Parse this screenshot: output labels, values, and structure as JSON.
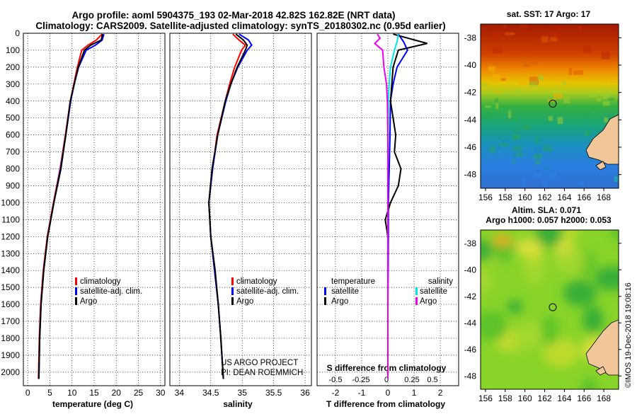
{
  "titles": {
    "line1": "Argo profile: aoml 5904375_193 02-Mar-2018 42.82S 162.82E (NRT data)",
    "line2": "Climatology: CARS2009. Satellite-adjusted climatology: synTS_20180302.nc (0.95d earlier)"
  },
  "colors": {
    "climatology": "#ff0000",
    "satellite": "#0000ff",
    "argo": "#000000",
    "sat_salinity": "#00e6e6",
    "argo_salinity": "#ee00ee"
  },
  "depth_axis": {
    "ticks": [
      0,
      100,
      200,
      300,
      400,
      500,
      600,
      700,
      800,
      900,
      1000,
      1100,
      1200,
      1300,
      1400,
      1500,
      1600,
      1700,
      1800,
      1900,
      2000
    ]
  },
  "panels": {
    "temperature": {
      "xlabel": "temperature (deg C)",
      "xticks": [
        0,
        5,
        10,
        15,
        20,
        25,
        30
      ],
      "legend": [
        "climatology",
        "satellite-adj. clim.",
        "Argo"
      ]
    },
    "salinity": {
      "xlabel": "salinity",
      "xticks": [
        34,
        34.5,
        35,
        35.5,
        36
      ],
      "legend": [
        "climatology",
        "satellite-adj. clim.",
        "Argo"
      ],
      "credit1": "US ARGO PROJECT",
      "credit2": "PI: DEAN ROEMMICH"
    },
    "difference": {
      "xlabel": "T difference from climatology",
      "xticks": [
        -2,
        -1,
        0,
        1,
        2
      ],
      "s_label": "S difference from climatology",
      "s_ticks": [
        "-0.5",
        "-0.25",
        "0",
        "0.25",
        "0.5"
      ],
      "legend_t_title": "temperature",
      "legend_s_title": "salinity",
      "legend_items": [
        "satellite",
        "Argo"
      ]
    }
  },
  "maps": {
    "sst": {
      "title": "sat. SST: 17 Argo: 17"
    },
    "sla": {
      "title1": "Altim. SLA: 0.071",
      "title2": "Argo h1000: 0.057 h2000: 0.053"
    },
    "lat_ticks": [
      "-38",
      "-40",
      "-42",
      "-44",
      "-46",
      "-48"
    ],
    "lon_ticks": [
      "156",
      "158",
      "160",
      "162",
      "164",
      "166",
      "168"
    ],
    "stamp": "©IMOS 19-Dec-2018 19:08:16"
  },
  "chart_data": [
    {
      "type": "line",
      "title": "temperature",
      "xlabel": "temperature (deg C)",
      "ylabel": "depth",
      "xlim": [
        -1,
        31
      ],
      "ylim": [
        2080,
        0
      ],
      "series": [
        {
          "name": "climatology",
          "depth": [
            5,
            40,
            70,
            100,
            200,
            300,
            400,
            600,
            800,
            1000,
            1200,
            1400,
            1600,
            1800,
            2040
          ],
          "values": [
            16.8,
            15.5,
            13.6,
            12.2,
            11.2,
            10.4,
            9.6,
            8.5,
            7.3,
            5.8,
            4.4,
            3.5,
            2.9,
            2.6,
            2.4
          ]
        },
        {
          "name": "satellite-adj. clim.",
          "depth": [
            5,
            40,
            70,
            100,
            200,
            300,
            400,
            600,
            800,
            1000,
            1200,
            1400,
            1600,
            1800,
            2040
          ],
          "values": [
            17.2,
            16.8,
            15.3,
            13.2,
            11.5,
            10.5,
            9.7,
            8.6,
            7.4,
            5.9,
            4.5,
            3.6,
            3.0,
            2.7,
            2.5
          ]
        },
        {
          "name": "Argo",
          "depth": [
            5,
            40,
            70,
            100,
            200,
            300,
            400,
            600,
            800,
            1000,
            1200,
            1400,
            1600,
            1800,
            2040
          ],
          "values": [
            16.9,
            16.6,
            14.2,
            12.8,
            11.4,
            10.5,
            9.6,
            8.6,
            7.5,
            5.9,
            4.5,
            3.6,
            3.0,
            2.7,
            2.5
          ]
        }
      ]
    },
    {
      "type": "line",
      "title": "salinity",
      "xlabel": "salinity",
      "ylabel": "depth",
      "xlim": [
        33.85,
        36.1
      ],
      "ylim": [
        2080,
        0
      ],
      "series": [
        {
          "name": "climatology",
          "depth": [
            5,
            40,
            70,
            100,
            200,
            300,
            400,
            600,
            800,
            1000,
            1200,
            1400,
            1600,
            1800,
            2040
          ],
          "values": [
            34.85,
            34.95,
            35.05,
            34.99,
            34.88,
            34.8,
            34.73,
            34.6,
            34.53,
            34.47,
            34.5,
            34.56,
            34.62,
            34.66,
            34.7
          ]
        },
        {
          "name": "satellite-adj. clim.",
          "depth": [
            5,
            40,
            70,
            100,
            200,
            300,
            400,
            600,
            800,
            1000,
            1200,
            1400,
            1600,
            1800,
            2040
          ],
          "values": [
            34.95,
            35.1,
            35.15,
            35.08,
            34.93,
            34.82,
            34.74,
            34.61,
            34.53,
            34.47,
            34.5,
            34.56,
            34.62,
            34.66,
            34.7
          ]
        },
        {
          "name": "Argo",
          "depth": [
            5,
            40,
            70,
            100,
            200,
            300,
            400,
            600,
            800,
            1000,
            1200,
            1400,
            1600,
            1800,
            2040
          ],
          "values": [
            34.9,
            35.02,
            35.08,
            35.05,
            34.92,
            34.82,
            34.73,
            34.61,
            34.52,
            34.47,
            34.5,
            34.57,
            34.62,
            34.66,
            34.7
          ]
        }
      ]
    },
    {
      "type": "line",
      "title": "difference from climatology",
      "xlabel": "T difference from climatology",
      "s_axis_label": "S difference from climatology",
      "ylabel": "depth",
      "xlim": [
        -2.7,
        2.7
      ],
      "ylim": [
        2080,
        0
      ],
      "series": [
        {
          "name": "temperature satellite",
          "depth": [
            5,
            50,
            100,
            150,
            200,
            300,
            400,
            600,
            800,
            1000,
            1200,
            1400,
            1600,
            1800,
            2040
          ],
          "values": [
            0.4,
            0.6,
            0.75,
            0.55,
            0.35,
            0.2,
            0.1,
            0.08,
            0.05,
            0.02,
            0.02,
            0.01,
            0.0,
            0.0,
            0.0
          ]
        },
        {
          "name": "temperature Argo",
          "depth": [
            5,
            60,
            100,
            150,
            200,
            300,
            400,
            500,
            600,
            700,
            800,
            900,
            1000,
            1100,
            1200,
            1400,
            1600,
            1800,
            2040
          ],
          "values": [
            0.2,
            1.5,
            0.4,
            0.3,
            0.2,
            0.15,
            0.1,
            0.2,
            0.3,
            0.25,
            0.5,
            0.4,
            0.1,
            -0.1,
            0.0,
            0.0,
            0.0,
            0.0,
            0.0
          ]
        },
        {
          "name": "salinity satellite",
          "depth": [
            5,
            50,
            100,
            200,
            300,
            400,
            600,
            800,
            1000,
            1200,
            1400,
            1600,
            1800,
            2040
          ],
          "values": [
            0.4,
            0.35,
            0.25,
            0.1,
            0.05,
            0.02,
            0.01,
            0.0,
            0.0,
            0.0,
            0.0,
            0.0,
            0.0,
            0.0
          ]
        },
        {
          "name": "salinity Argo",
          "depth": [
            5,
            30,
            60,
            100,
            200,
            300,
            400,
            600,
            800,
            1000,
            1200,
            1400,
            1600,
            1800,
            2040
          ],
          "values": [
            -0.4,
            -0.3,
            -0.5,
            -0.2,
            -0.15,
            -0.05,
            -0.02,
            0.0,
            0.0,
            0.0,
            0.0,
            0.0,
            0.0,
            0.0,
            0.0
          ]
        }
      ]
    },
    {
      "type": "heatmap",
      "title": "sat. SST: 17 Argo: 17",
      "xlabel": "longitude",
      "ylabel": "latitude",
      "xlim": [
        155.5,
        169.5
      ],
      "ylim": [
        -49,
        -37
      ],
      "argo_position": [
        162.82,
        -42.82
      ]
    },
    {
      "type": "heatmap",
      "title": "Altim. SLA: 0.071 / Argo h1000: 0.057 h2000: 0.053",
      "xlabel": "longitude",
      "ylabel": "latitude",
      "xlim": [
        155.5,
        169.5
      ],
      "ylim": [
        -49,
        -37
      ],
      "argo_position": [
        162.82,
        -42.82
      ]
    }
  ]
}
